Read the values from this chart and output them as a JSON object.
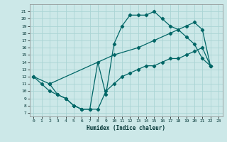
{
  "xlabel": "Humidex (Indice chaleur)",
  "bg_color": "#cce8e8",
  "grid_color": "#aad4d4",
  "line_color": "#006666",
  "xlim": [
    -0.5,
    23.5
  ],
  "ylim": [
    6.5,
    22.0
  ],
  "xticks": [
    0,
    1,
    2,
    3,
    4,
    5,
    6,
    7,
    8,
    9,
    10,
    11,
    12,
    13,
    14,
    15,
    16,
    17,
    18,
    19,
    20,
    21,
    22,
    23
  ],
  "yticks": [
    7,
    8,
    9,
    10,
    11,
    12,
    13,
    14,
    15,
    16,
    17,
    18,
    19,
    20,
    21
  ],
  "line1_x": [
    0,
    1,
    2,
    3,
    4,
    5,
    6,
    7,
    8,
    9,
    10,
    11,
    12,
    13,
    14,
    15,
    16,
    17,
    18,
    19,
    20,
    21,
    22
  ],
  "line1_y": [
    12,
    11,
    10,
    9.5,
    9,
    8,
    7.5,
    7.5,
    14,
    9.5,
    16.5,
    19,
    20.5,
    20.5,
    20.5,
    21,
    20,
    19,
    18.5,
    17.5,
    16.5,
    14.5,
    13.5
  ],
  "line2_x": [
    0,
    2,
    10,
    13,
    15,
    17,
    19,
    20,
    21,
    22
  ],
  "line2_y": [
    12,
    11,
    15,
    16,
    17,
    18,
    19,
    19.5,
    18.5,
    13.5
  ],
  "line3_x": [
    2,
    3,
    4,
    5,
    6,
    7,
    8,
    9,
    10,
    11,
    12,
    13,
    14,
    15,
    16,
    17,
    18,
    19,
    20,
    21,
    22
  ],
  "line3_y": [
    11,
    9.5,
    9,
    8,
    7.5,
    7.5,
    7.5,
    10,
    11,
    12,
    12.5,
    13,
    13.5,
    13.5,
    14,
    14.5,
    14.5,
    15,
    15.5,
    16,
    13.5
  ]
}
